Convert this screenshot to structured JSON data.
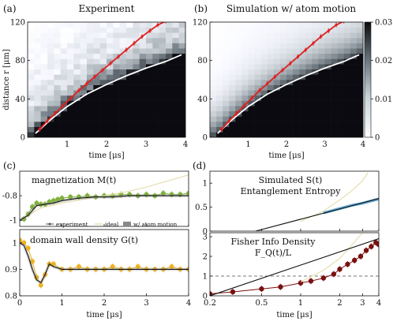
{
  "chart_data": [
    {
      "id": "a",
      "panel_label": "(a)",
      "title": "Experiment",
      "type": "heatmap",
      "xlabel": "time [μs]",
      "ylabel": "distance r [μm]",
      "xlim": [
        0,
        4
      ],
      "ylim": [
        0,
        120
      ],
      "xticks": [
        "1",
        "2",
        "3",
        "4"
      ],
      "yticks": [
        "0",
        "40",
        "80",
        "120"
      ],
      "heatmap_grid": {
        "cols": 24,
        "rows": 22
      },
      "series": [
        {
          "role": "red_fit",
          "color": "#e02020",
          "x": [
            0.3,
            0.5,
            0.7,
            0.9,
            1.1,
            1.3,
            1.5,
            1.7,
            1.9,
            2.1,
            2.3,
            2.5,
            2.7,
            2.9,
            3.1,
            3.3,
            3.5
          ],
          "y": [
            8,
            17,
            25,
            33,
            41,
            49,
            56,
            63,
            70,
            77,
            84,
            91,
            98,
            105,
            111,
            117,
            121
          ]
        },
        {
          "role": "white_curve",
          "color": "#ffffff",
          "x": [
            0.2,
            0.6,
            1.0,
            1.5,
            2.0,
            2.5,
            3.0,
            3.5,
            3.9
          ],
          "y": [
            4,
            19,
            32,
            45,
            55,
            64,
            72,
            79,
            86
          ]
        }
      ]
    },
    {
      "id": "b",
      "panel_label": "(b)",
      "title": "Simulation w/ atom motion",
      "type": "heatmap",
      "xlabel": "time [μs]",
      "ylabel": "",
      "xlim": [
        0,
        4
      ],
      "ylim": [
        0,
        120
      ],
      "xticks": [
        "1",
        "2",
        "3",
        "4"
      ],
      "yticks": [
        "0",
        "40",
        "80",
        "120"
      ],
      "colorbar": {
        "range": [
          0,
          0.03
        ],
        "ticks": [
          "0",
          "0.01",
          "0.02",
          "0.03"
        ]
      },
      "series": [
        {
          "role": "red_fit",
          "color": "#e02020",
          "x": [
            0.3,
            0.5,
            0.7,
            0.9,
            1.1,
            1.3,
            1.5,
            1.7,
            1.9,
            2.1,
            2.3,
            2.5,
            2.7,
            2.9,
            3.1,
            3.3,
            3.5
          ],
          "y": [
            8,
            17,
            25,
            33,
            41,
            49,
            56,
            63,
            70,
            77,
            84,
            91,
            98,
            105,
            111,
            117,
            121
          ]
        },
        {
          "role": "white_curve",
          "color": "#ffffff",
          "x": [
            0.2,
            0.6,
            1.0,
            1.5,
            2.0,
            2.5,
            3.0,
            3.5,
            3.9
          ],
          "y": [
            4,
            19,
            32,
            45,
            55,
            64,
            72,
            79,
            86
          ]
        }
      ]
    },
    {
      "id": "c1",
      "panel_label": "(c)",
      "type": "line",
      "annotation": "magnetization M(t)",
      "xlim": [
        0,
        4
      ],
      "ylim": [
        -1.05,
        -0.6
      ],
      "yticks": [
        "-0.8",
        "-1"
      ],
      "legend": {
        "placement": "bottom",
        "entries": [
          "experiment",
          "ideal",
          "w/ atom motion"
        ]
      },
      "series": [
        {
          "name": "experiment",
          "color": "#7fb23a",
          "x": [
            0.1,
            0.2,
            0.3,
            0.4,
            0.5,
            0.6,
            0.7,
            0.8,
            0.9,
            1.0,
            1.2,
            1.4,
            1.6,
            1.8,
            2.0,
            2.2,
            2.4,
            2.6,
            2.8,
            3.0,
            3.2,
            3.4,
            3.6,
            3.8,
            4.0
          ],
          "y": [
            -0.99,
            -0.95,
            -0.89,
            -0.86,
            -0.87,
            -0.87,
            -0.85,
            -0.84,
            -0.83,
            -0.82,
            -0.81,
            -0.81,
            -0.8,
            -0.81,
            -0.8,
            -0.8,
            -0.79,
            -0.79,
            -0.8,
            -0.79,
            -0.8,
            -0.78,
            -0.79,
            -0.79,
            -0.78
          ]
        },
        {
          "name": "ideal",
          "color": "#e6dfae",
          "x": [
            0,
            0.5,
            1.0,
            1.5,
            2.0,
            2.5,
            3.0,
            3.5,
            4.0
          ],
          "y": [
            -1.0,
            -0.9,
            -0.86,
            -0.83,
            -0.8,
            -0.77,
            -0.73,
            -0.68,
            -0.63
          ]
        },
        {
          "name": "w/ atom motion",
          "color": "#111111",
          "x": [
            0,
            0.2,
            0.4,
            0.6,
            0.8,
            1.0,
            1.4,
            1.8,
            2.2,
            2.6,
            3.0,
            3.4,
            3.8,
            4.0
          ],
          "y": [
            -1.0,
            -0.96,
            -0.88,
            -0.87,
            -0.86,
            -0.84,
            -0.82,
            -0.81,
            -0.81,
            -0.8,
            -0.8,
            -0.8,
            -0.8,
            -0.8
          ]
        }
      ]
    },
    {
      "id": "c2",
      "panel_label": "",
      "type": "line",
      "annotation": "domain wall density G(t)",
      "xlabel": "time [μs]",
      "xlim": [
        0,
        4
      ],
      "ylim": [
        0.8,
        1.05
      ],
      "xticks": [
        "0",
        "1",
        "2",
        "3",
        "4"
      ],
      "yticks": [
        "0.8",
        "0.9",
        "1"
      ],
      "series": [
        {
          "name": "experiment",
          "color": "#f0b21e",
          "x": [
            0.0,
            0.1,
            0.2,
            0.3,
            0.4,
            0.5,
            0.6,
            0.7,
            0.8,
            1.0,
            1.2,
            1.4,
            1.6,
            1.8,
            2.0,
            2.2,
            2.4,
            2.6,
            2.8,
            3.0,
            3.2,
            3.4,
            3.6,
            3.8,
            4.0
          ],
          "y": [
            1.01,
            1.0,
            0.98,
            0.93,
            0.87,
            0.84,
            0.88,
            0.92,
            0.92,
            0.9,
            0.9,
            0.91,
            0.9,
            0.9,
            0.9,
            0.91,
            0.9,
            0.9,
            0.91,
            0.9,
            0.9,
            0.9,
            0.91,
            0.9,
            0.9
          ]
        },
        {
          "name": "w/ atom motion",
          "color": "#111111",
          "x": [
            0,
            0.1,
            0.2,
            0.3,
            0.4,
            0.5,
            0.6,
            0.7,
            0.8,
            1.0,
            1.4,
            2.0,
            3.0,
            4.0
          ],
          "y": [
            1.0,
            0.99,
            0.95,
            0.9,
            0.86,
            0.85,
            0.88,
            0.92,
            0.91,
            0.9,
            0.9,
            0.9,
            0.9,
            0.9
          ]
        }
      ]
    },
    {
      "id": "d1",
      "panel_label": "(d)",
      "type": "line",
      "annotation": "Simulated S(t) Entanglement Entropy",
      "xlim": [
        0.2,
        4
      ],
      "ylim": [
        0,
        1.25
      ],
      "xscale": "log",
      "yticks": [
        "0",
        "0.5",
        "1"
      ],
      "series": [
        {
          "name": "simulated",
          "color": "#3a93c7",
          "x": [
            1.5,
            2.0,
            2.5,
            3.0,
            3.5,
            4.0
          ],
          "y": [
            0.38,
            0.47,
            0.54,
            0.58,
            0.63,
            0.67
          ]
        },
        {
          "name": "ideal",
          "color": "#e6dfae",
          "x": [
            1.0,
            1.5,
            2.0,
            2.5,
            3.0,
            3.3
          ],
          "y": [
            0.2,
            0.42,
            0.65,
            0.85,
            1.05,
            1.22
          ]
        },
        {
          "name": "fit",
          "color": "#111111",
          "x": [
            0.45,
            4.0
          ],
          "y": [
            0.0,
            0.68
          ]
        }
      ]
    },
    {
      "id": "d2",
      "panel_label": "",
      "type": "line",
      "annotation": "Fisher Info Density F_Q(t)/L",
      "xlabel": "time [μs]",
      "xlim": [
        0.2,
        4
      ],
      "ylim": [
        0,
        3.2
      ],
      "xscale": "log",
      "xticks": [
        "0.2",
        "0.5",
        "1",
        "2",
        "3",
        "4"
      ],
      "yticks": [
        "0",
        "1",
        "2",
        "3"
      ],
      "reference_line": {
        "y": 1,
        "style": "dashed"
      },
      "series": [
        {
          "name": "experiment",
          "color": "#7a1010",
          "x": [
            0.2,
            0.3,
            0.5,
            0.7,
            1.0,
            1.2,
            1.5,
            1.8,
            2.0,
            2.3,
            2.6,
            2.9,
            3.2,
            3.5,
            3.8,
            4.0
          ],
          "y": [
            0.1,
            0.2,
            0.35,
            0.45,
            0.65,
            0.75,
            0.9,
            1.1,
            1.35,
            1.6,
            1.8,
            2.0,
            2.3,
            2.5,
            2.7,
            2.6
          ]
        },
        {
          "name": "ideal",
          "color": "#e6dfae",
          "x": [
            1.0,
            1.5,
            2.0,
            2.5,
            3.0
          ],
          "y": [
            0.7,
            1.3,
            1.9,
            2.6,
            3.2
          ]
        },
        {
          "name": "fit",
          "color": "#111111",
          "x": [
            0.2,
            4.0
          ],
          "y": [
            0.0,
            2.9
          ]
        }
      ]
    }
  ]
}
